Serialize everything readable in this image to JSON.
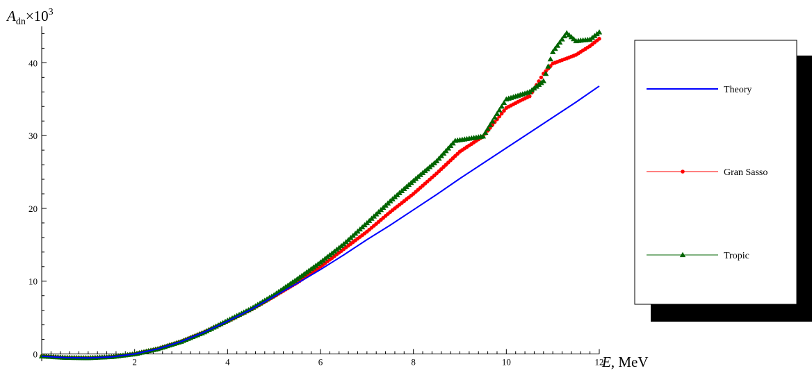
{
  "chart_data": {
    "type": "line",
    "title": "",
    "xlabel_symbol": "E",
    "xlabel_unit": ", MeV",
    "ylabel_symbol": "A",
    "ylabel_subscript": "dn",
    "ylabel_multiplier": "×10",
    "ylabel_exponent": "3",
    "xlim": [
      0,
      12
    ],
    "ylim": [
      -1,
      45
    ],
    "x_ticks": [
      2,
      4,
      6,
      8,
      10,
      12
    ],
    "y_ticks": [
      0,
      10,
      20,
      30,
      40
    ],
    "x_minor_step": 0.2,
    "y_minor_step": 2,
    "grid": false,
    "legend_position": "right",
    "series": [
      {
        "name": "Theory",
        "color": "#0000ff",
        "marker": "none",
        "points": [
          [
            0.0,
            -0.3
          ],
          [
            0.5,
            -0.5
          ],
          [
            1.0,
            -0.55
          ],
          [
            1.5,
            -0.4
          ],
          [
            2.0,
            0.0
          ],
          [
            2.5,
            0.7
          ],
          [
            3.0,
            1.7
          ],
          [
            3.5,
            3.0
          ],
          [
            4.0,
            4.5
          ],
          [
            4.5,
            6.1
          ],
          [
            5.0,
            7.9
          ],
          [
            5.5,
            9.7
          ],
          [
            6.0,
            11.6
          ],
          [
            6.5,
            13.6
          ],
          [
            7.0,
            15.7
          ],
          [
            7.5,
            17.7
          ],
          [
            8.0,
            19.8
          ],
          [
            8.5,
            21.9
          ],
          [
            9.0,
            24.1
          ],
          [
            9.5,
            26.2
          ],
          [
            10.0,
            28.3
          ],
          [
            10.5,
            30.4
          ],
          [
            11.0,
            32.5
          ],
          [
            11.5,
            34.6
          ],
          [
            12.0,
            36.8
          ]
        ]
      },
      {
        "name": "Gran Sasso",
        "color": "#ff0000",
        "marker": "circle",
        "points": [
          [
            0.0,
            -0.3
          ],
          [
            0.5,
            -0.5
          ],
          [
            1.0,
            -0.55
          ],
          [
            1.5,
            -0.4
          ],
          [
            2.0,
            0.0
          ],
          [
            2.5,
            0.7
          ],
          [
            3.0,
            1.7
          ],
          [
            3.5,
            3.0
          ],
          [
            4.0,
            4.5
          ],
          [
            4.5,
            6.1
          ],
          [
            5.0,
            7.9
          ],
          [
            5.5,
            9.8
          ],
          [
            6.0,
            12.0
          ],
          [
            6.5,
            14.4
          ],
          [
            7.0,
            16.8
          ],
          [
            7.5,
            19.5
          ],
          [
            8.0,
            22.0
          ],
          [
            8.5,
            24.8
          ],
          [
            9.0,
            27.8
          ],
          [
            9.5,
            29.9
          ],
          [
            10.0,
            33.8
          ],
          [
            10.3,
            34.8
          ],
          [
            10.5,
            35.4
          ],
          [
            10.8,
            38.5
          ],
          [
            11.0,
            39.9
          ],
          [
            11.3,
            40.6
          ],
          [
            11.5,
            41.1
          ],
          [
            11.8,
            42.3
          ],
          [
            12.0,
            43.3
          ]
        ]
      },
      {
        "name": "Tropic",
        "color": "#006400",
        "marker": "triangle",
        "points": [
          [
            0.0,
            -0.3
          ],
          [
            0.5,
            -0.5
          ],
          [
            1.0,
            -0.55
          ],
          [
            1.5,
            -0.4
          ],
          [
            2.0,
            0.0
          ],
          [
            2.5,
            0.7
          ],
          [
            3.0,
            1.7
          ],
          [
            3.5,
            3.0
          ],
          [
            4.0,
            4.6
          ],
          [
            4.5,
            6.2
          ],
          [
            5.0,
            8.1
          ],
          [
            5.5,
            10.3
          ],
          [
            6.0,
            12.6
          ],
          [
            6.5,
            15.1
          ],
          [
            7.0,
            18.0
          ],
          [
            7.5,
            21.0
          ],
          [
            8.0,
            23.8
          ],
          [
            8.5,
            26.5
          ],
          [
            8.9,
            29.3
          ],
          [
            9.5,
            29.9
          ],
          [
            9.8,
            33.0
          ],
          [
            10.0,
            35.0
          ],
          [
            10.5,
            36.0
          ],
          [
            10.8,
            37.5
          ],
          [
            11.0,
            41.5
          ],
          [
            11.3,
            44.1
          ],
          [
            11.5,
            43.0
          ],
          [
            11.8,
            43.2
          ],
          [
            12.0,
            44.2
          ]
        ]
      }
    ]
  }
}
